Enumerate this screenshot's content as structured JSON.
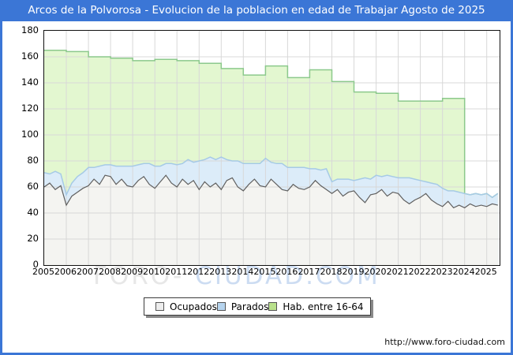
{
  "title_bar": {
    "title": "Arcos de la Polvorosa - Evolucion de la poblacion en edad de Trabajar Agosto de 2025"
  },
  "watermark": {
    "part1": "FORO-",
    "part2": "CIUDAD.COM"
  },
  "footer": {
    "url": "http://www.foro-ciudad.com"
  },
  "colors": {
    "frame_blue": "#3b76d6",
    "grid": "#d8d8d8",
    "plot_border": "#111111",
    "ocupados_fill": "#f4f4f1",
    "ocupados_line": "#606060",
    "parados_fill": "#dcecf9",
    "parados_line": "#a6cae6",
    "hab_fill": "#e3f7d0",
    "hab_line": "#8cc98c"
  },
  "chart_data": {
    "type": "area",
    "stacked": true,
    "title": "Arcos de la Polvorosa - Evolucion de la poblacion en edad de Trabajar Agosto de 2025",
    "xlabel": "",
    "ylabel": "",
    "x_range": [
      2005,
      2025.58
    ],
    "y_range": [
      0,
      180
    ],
    "y_ticks": [
      0,
      20,
      40,
      60,
      80,
      100,
      120,
      140,
      160,
      180
    ],
    "x_ticks": [
      2005,
      2006,
      2007,
      2008,
      2009,
      2010,
      2011,
      2012,
      2013,
      2014,
      2015,
      2016,
      2017,
      2018,
      2019,
      2020,
      2021,
      2022,
      2023,
      2024,
      2025
    ],
    "x_start": 2005.0,
    "x_step": 0.25,
    "legend_position": "bottom",
    "series": [
      {
        "name": "Ocupados",
        "fill": "#f4f4f1",
        "line": "#606060",
        "swatch": "#ededed",
        "values": [
          60,
          63,
          58,
          61,
          46,
          53,
          56,
          59,
          61,
          66,
          62,
          69,
          68,
          62,
          66,
          61,
          60,
          65,
          68,
          62,
          59,
          64,
          69,
          63,
          60,
          66,
          62,
          65,
          58,
          64,
          60,
          63,
          58,
          65,
          67,
          60,
          57,
          62,
          66,
          61,
          60,
          66,
          62,
          58,
          57,
          62,
          59,
          58,
          60,
          65,
          61,
          58,
          55,
          58,
          53,
          56,
          57,
          52,
          48,
          54,
          55,
          58,
          53,
          56,
          55,
          50,
          47,
          50,
          52,
          55,
          50,
          47,
          45,
          49,
          44,
          46,
          44,
          47,
          45,
          46,
          45,
          47,
          46
        ]
      },
      {
        "name": "Parados",
        "fill": "#dcecf9",
        "line": "#a6cae6",
        "swatch": "#b6d4ee",
        "values": [
          11,
          7,
          14,
          9,
          8,
          10,
          12,
          12,
          14,
          9,
          14,
          8,
          9,
          14,
          10,
          15,
          16,
          12,
          10,
          16,
          17,
          12,
          9,
          15,
          17,
          12,
          19,
          14,
          22,
          17,
          23,
          18,
          25,
          16,
          13,
          20,
          21,
          16,
          12,
          17,
          22,
          13,
          16,
          20,
          18,
          13,
          16,
          17,
          14,
          9,
          12,
          16,
          9,
          8,
          13,
          10,
          8,
          14,
          19,
          12,
          14,
          10,
          16,
          12,
          12,
          17,
          20,
          16,
          13,
          9,
          13,
          15,
          14,
          8,
          13,
          10,
          11,
          7,
          10,
          8,
          10,
          5,
          9
        ]
      },
      {
        "name": "Hab. entre 16-64",
        "fill": "#e3f7d0",
        "line": "#8cc98c",
        "swatch": "#b9e18c",
        "yearly_start": 2005,
        "yearly_values": [
          165,
          164,
          160,
          159,
          157,
          158,
          157,
          155,
          151,
          146,
          153,
          144,
          150,
          141,
          133,
          132,
          126,
          126,
          128
        ],
        "follows_from": 2024,
        "note": "Annual step series; from 2024 onward it coincides with Ocupados+Parados"
      }
    ]
  }
}
